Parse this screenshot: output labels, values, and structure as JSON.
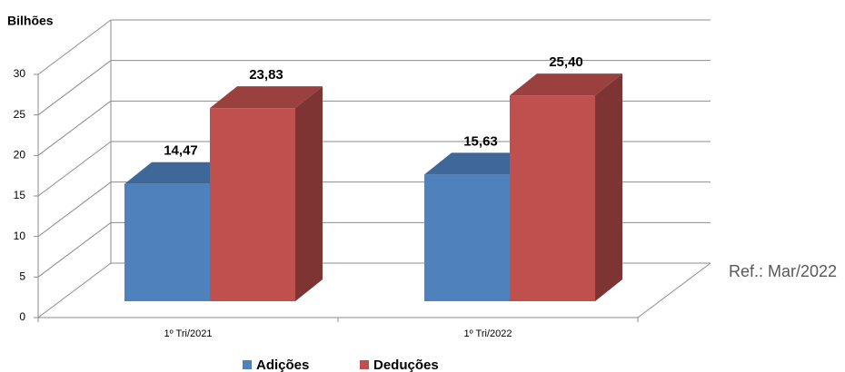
{
  "chart_data": {
    "type": "bar3d",
    "axis_title": "Bilhões",
    "annotation": "Ref.: Mar/2022",
    "categories": [
      "1º Tri/2021",
      "1º Tri/2022"
    ],
    "series": [
      {
        "name": "Adições",
        "color": "#4f81bd",
        "values": [
          14.47,
          15.63
        ],
        "value_labels": [
          "14,47",
          "15,63"
        ]
      },
      {
        "name": "Deduções",
        "color": "#c0504d",
        "values": [
          23.83,
          25.4
        ],
        "value_labels": [
          "23,83",
          "25,40"
        ]
      }
    ],
    "ylim": [
      0,
      30
    ],
    "yticks": [
      0,
      5,
      10,
      15,
      20,
      25,
      30
    ],
    "grid": true,
    "legend": "bottom"
  }
}
